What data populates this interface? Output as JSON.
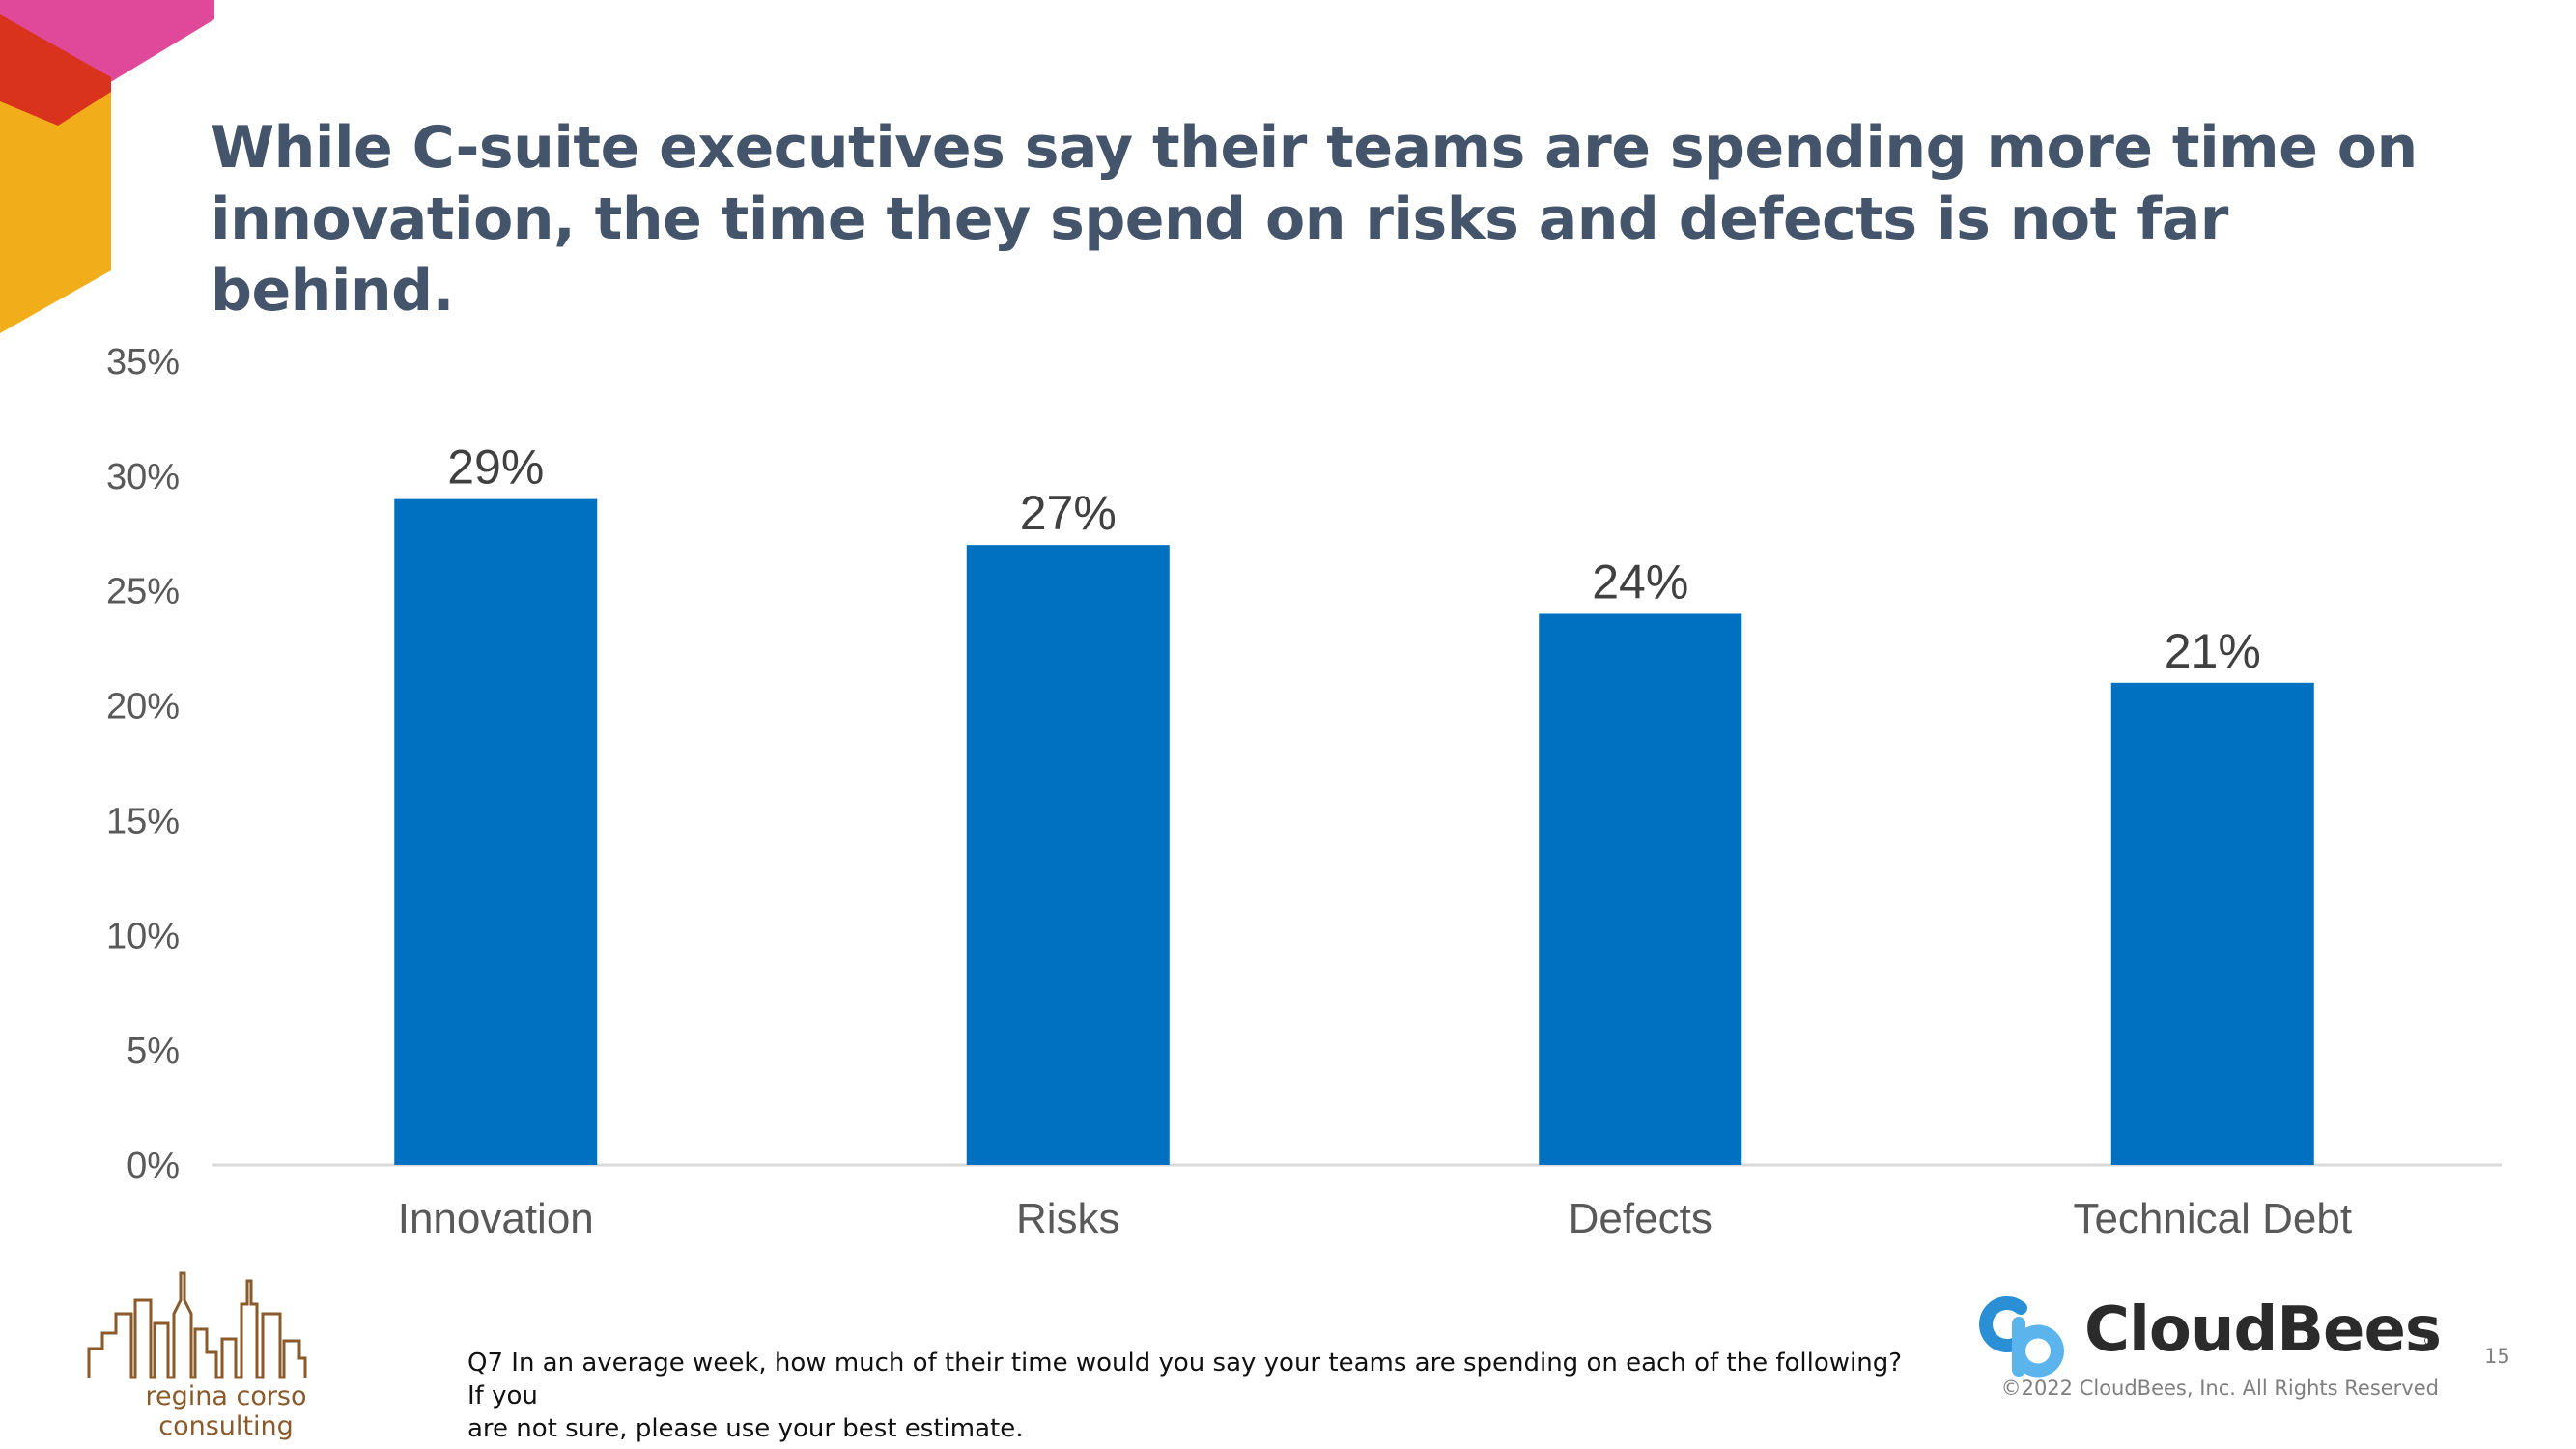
{
  "slide": {
    "title_lines": [
      "While C-suite executives say their teams are spending more time on",
      "innovation, the time they spend on risks and defects is not far behind."
    ],
    "footnote_lines": [
      "Q7 In an average week, how much of their time would you say your teams are spending on each of the following? If you",
      "are not sure, please use your best estimate."
    ],
    "left_logo_text": "regina corso consulting",
    "brand_name": "CloudBees",
    "brand_registered": "®",
    "copyright": "©2022 CloudBees, Inc. All Rights Reserved",
    "page_number": "15",
    "colors": {
      "bar": "#0070C0",
      "title": "#44546A",
      "deco_pink": "#E0489A",
      "deco_red": "#D9331E",
      "deco_yellow": "#F2AE1A",
      "logo_brown": "#8A5A2B",
      "logo_blue": "#2B8FD6"
    }
  },
  "chart_data": {
    "type": "bar",
    "categories": [
      "Innovation",
      "Risks",
      "Defects",
      "Technical Debt"
    ],
    "values": [
      29,
      27,
      24,
      21
    ],
    "data_labels": [
      "29%",
      "27%",
      "24%",
      "21%"
    ],
    "ylim": [
      0,
      35
    ],
    "yticks": [
      0,
      5,
      10,
      15,
      20,
      25,
      30,
      35
    ],
    "ytick_labels": [
      "0%",
      "5%",
      "10%",
      "15%",
      "20%",
      "25%",
      "30%",
      "35%"
    ],
    "grid": false,
    "legend": "none"
  }
}
